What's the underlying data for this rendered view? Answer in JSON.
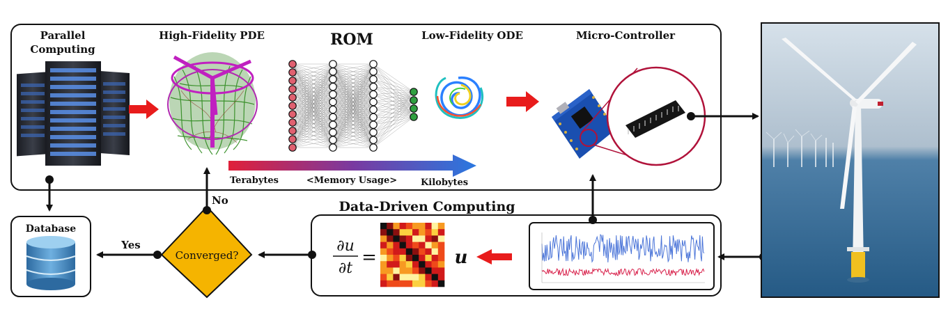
{
  "top_panel": {
    "parallel_computing": [
      "Parallel",
      "Computing"
    ],
    "high_fidelity": "High-Fidelity PDE",
    "rom": "ROM",
    "low_fidelity": "Low-Fidelity ODE",
    "micro_controller": "Micro-Controller"
  },
  "memory_bar": {
    "left": "Terabytes",
    "middle": "<Memory Usage>",
    "right": "Kilobytes"
  },
  "data_driven": {
    "title": "Data-Driven Computing",
    "equation_numerator": "∂u",
    "equation_denominator": "∂t",
    "equation_equals": "=",
    "equation_u": "u"
  },
  "database": {
    "label": "Database"
  },
  "decision": {
    "label": "Converged?",
    "yes": "Yes",
    "no": "No"
  },
  "colors": {
    "red_arrow": "#e81c1c",
    "diamond": "#f5b400",
    "db_blue": "#3a7fb8",
    "sea": "#4d7fa6",
    "signal_blue": "#4a74d8",
    "signal_red": "#d8204a"
  }
}
